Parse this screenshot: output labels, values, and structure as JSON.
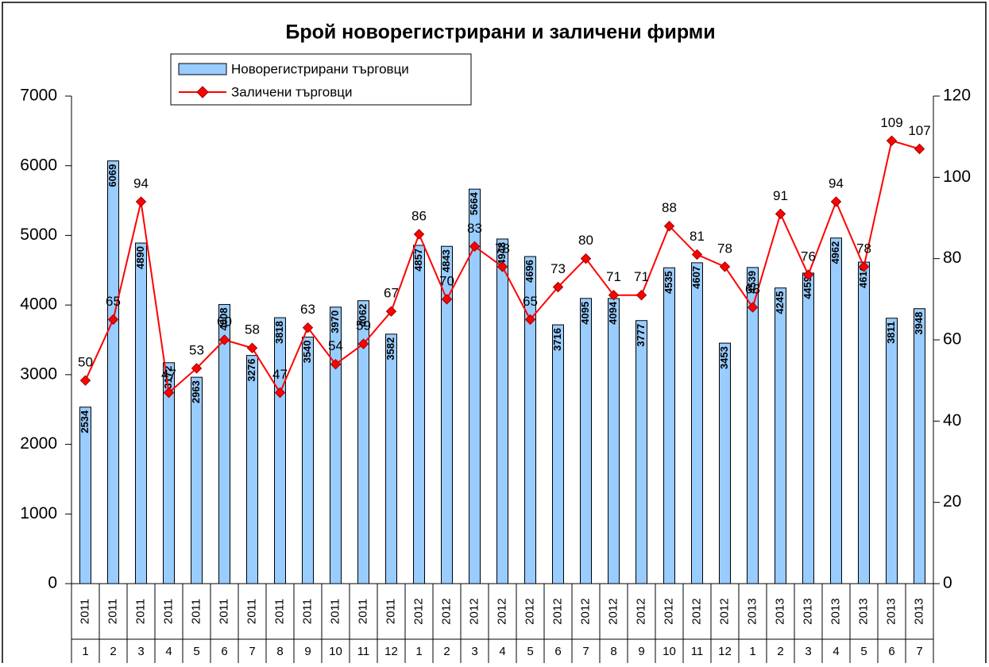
{
  "chart_data": {
    "type": "bar_line",
    "title": "Брой новорегистрирани и заличени фирми",
    "categories": [
      "1",
      "2",
      "3",
      "4",
      "5",
      "6",
      "7",
      "8",
      "9",
      "10",
      "11",
      "12",
      "1",
      "2",
      "3",
      "4",
      "5",
      "6",
      "7",
      "8",
      "9",
      "10",
      "11",
      "12",
      "1",
      "2",
      "3",
      "4",
      "5",
      "6",
      "7"
    ],
    "years": [
      "2011",
      "2011",
      "2011",
      "2011",
      "2011",
      "2011",
      "2011",
      "2011",
      "2011",
      "2011",
      "2011",
      "2011",
      "2012",
      "2012",
      "2012",
      "2012",
      "2012",
      "2012",
      "2012",
      "2012",
      "2012",
      "2012",
      "2012",
      "2012",
      "2013",
      "2013",
      "2013",
      "2013",
      "2013",
      "2013",
      "2013"
    ],
    "series": [
      {
        "name": "Новорегистрирани търговци",
        "type": "bar",
        "color": "#99ccff",
        "values": [
          2534,
          6069,
          4890,
          3172,
          2963,
          4008,
          3276,
          3818,
          3540,
          3970,
          4062,
          3582,
          4857,
          4843,
          5664,
          4948,
          4696,
          3716,
          4095,
          4094,
          3777,
          4535,
          4607,
          3453,
          4539,
          4245,
          4459,
          4962,
          4616,
          3811,
          3948
        ]
      },
      {
        "name": "Заличени търговци",
        "type": "line",
        "axis": "y2",
        "color": "#ff0000",
        "values": [
          50,
          65,
          94,
          47,
          53,
          60,
          58,
          47,
          63,
          54,
          59,
          67,
          86,
          70,
          83,
          78,
          65,
          73,
          80,
          71,
          71,
          88,
          81,
          78,
          68,
          91,
          76,
          94,
          78,
          109,
          107
        ]
      }
    ],
    "ylim": [
      0,
      7000
    ],
    "yticks": [
      0,
      1000,
      2000,
      3000,
      4000,
      5000,
      6000,
      7000
    ],
    "y2lim": [
      0,
      120
    ],
    "y2ticks": [
      0,
      20,
      40,
      60,
      80,
      100,
      120
    ],
    "grid": false
  }
}
